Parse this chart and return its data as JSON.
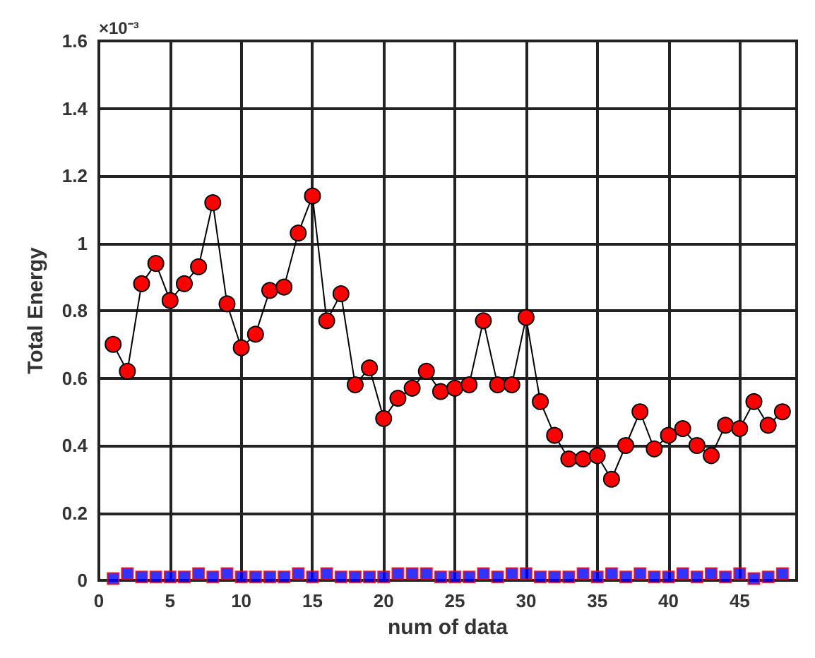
{
  "chart_data": {
    "type": "line",
    "xlabel": "num of data",
    "ylabel": "Total Energy",
    "annotations": [
      "×10⁻³"
    ],
    "x": [
      1,
      2,
      3,
      4,
      5,
      6,
      7,
      8,
      9,
      10,
      11,
      12,
      13,
      14,
      15,
      16,
      17,
      18,
      19,
      20,
      21,
      22,
      23,
      24,
      25,
      26,
      27,
      28,
      29,
      30,
      31,
      32,
      33,
      34,
      35,
      36,
      37,
      38,
      39,
      40,
      41,
      42,
      43,
      44,
      45,
      46,
      47,
      48
    ],
    "series": [
      {
        "color": "#ff0000",
        "marker": "circle",
        "values": [
          0.7,
          0.62,
          0.88,
          0.94,
          0.83,
          0.88,
          0.93,
          1.12,
          0.82,
          0.69,
          0.73,
          0.86,
          0.87,
          1.03,
          1.14,
          0.77,
          0.85,
          0.58,
          0.63,
          0.48,
          0.54,
          0.57,
          0.62,
          0.56,
          0.57,
          0.58,
          0.77,
          0.58,
          0.58,
          0.78,
          0.53,
          0.43,
          0.36,
          0.36,
          0.37,
          0.3,
          0.4,
          0.5,
          0.39,
          0.43,
          0.45,
          0.4,
          0.37,
          0.46,
          0.45,
          0.53,
          0.46,
          0.5
        ]
      },
      {
        "type": "scatter",
        "color": "#0000ff",
        "marker": "square",
        "values": [
          0.005,
          0.02,
          0.01,
          0.01,
          0.01,
          0.01,
          0.02,
          0.01,
          0.02,
          0.01,
          0.01,
          0.01,
          0.01,
          0.02,
          0.01,
          0.02,
          0.01,
          0.01,
          0.01,
          0.01,
          0.02,
          0.02,
          0.02,
          0.01,
          0.01,
          0.01,
          0.02,
          0.01,
          0.02,
          0.02,
          0.01,
          0.01,
          0.01,
          0.02,
          0.01,
          0.02,
          0.01,
          0.02,
          0.01,
          0.01,
          0.02,
          0.01,
          0.02,
          0.01,
          0.02,
          0.005,
          0.01,
          0.02
        ]
      }
    ],
    "xlim": [
      0,
      49
    ],
    "xticks": [
      0,
      5,
      10,
      15,
      20,
      25,
      30,
      35,
      40,
      45
    ],
    "ylim": [
      0,
      1.6
    ],
    "yticks": [
      0,
      0.2,
      0.4,
      0.6,
      0.8,
      1,
      1.2,
      1.4,
      1.6
    ],
    "grid": true
  }
}
